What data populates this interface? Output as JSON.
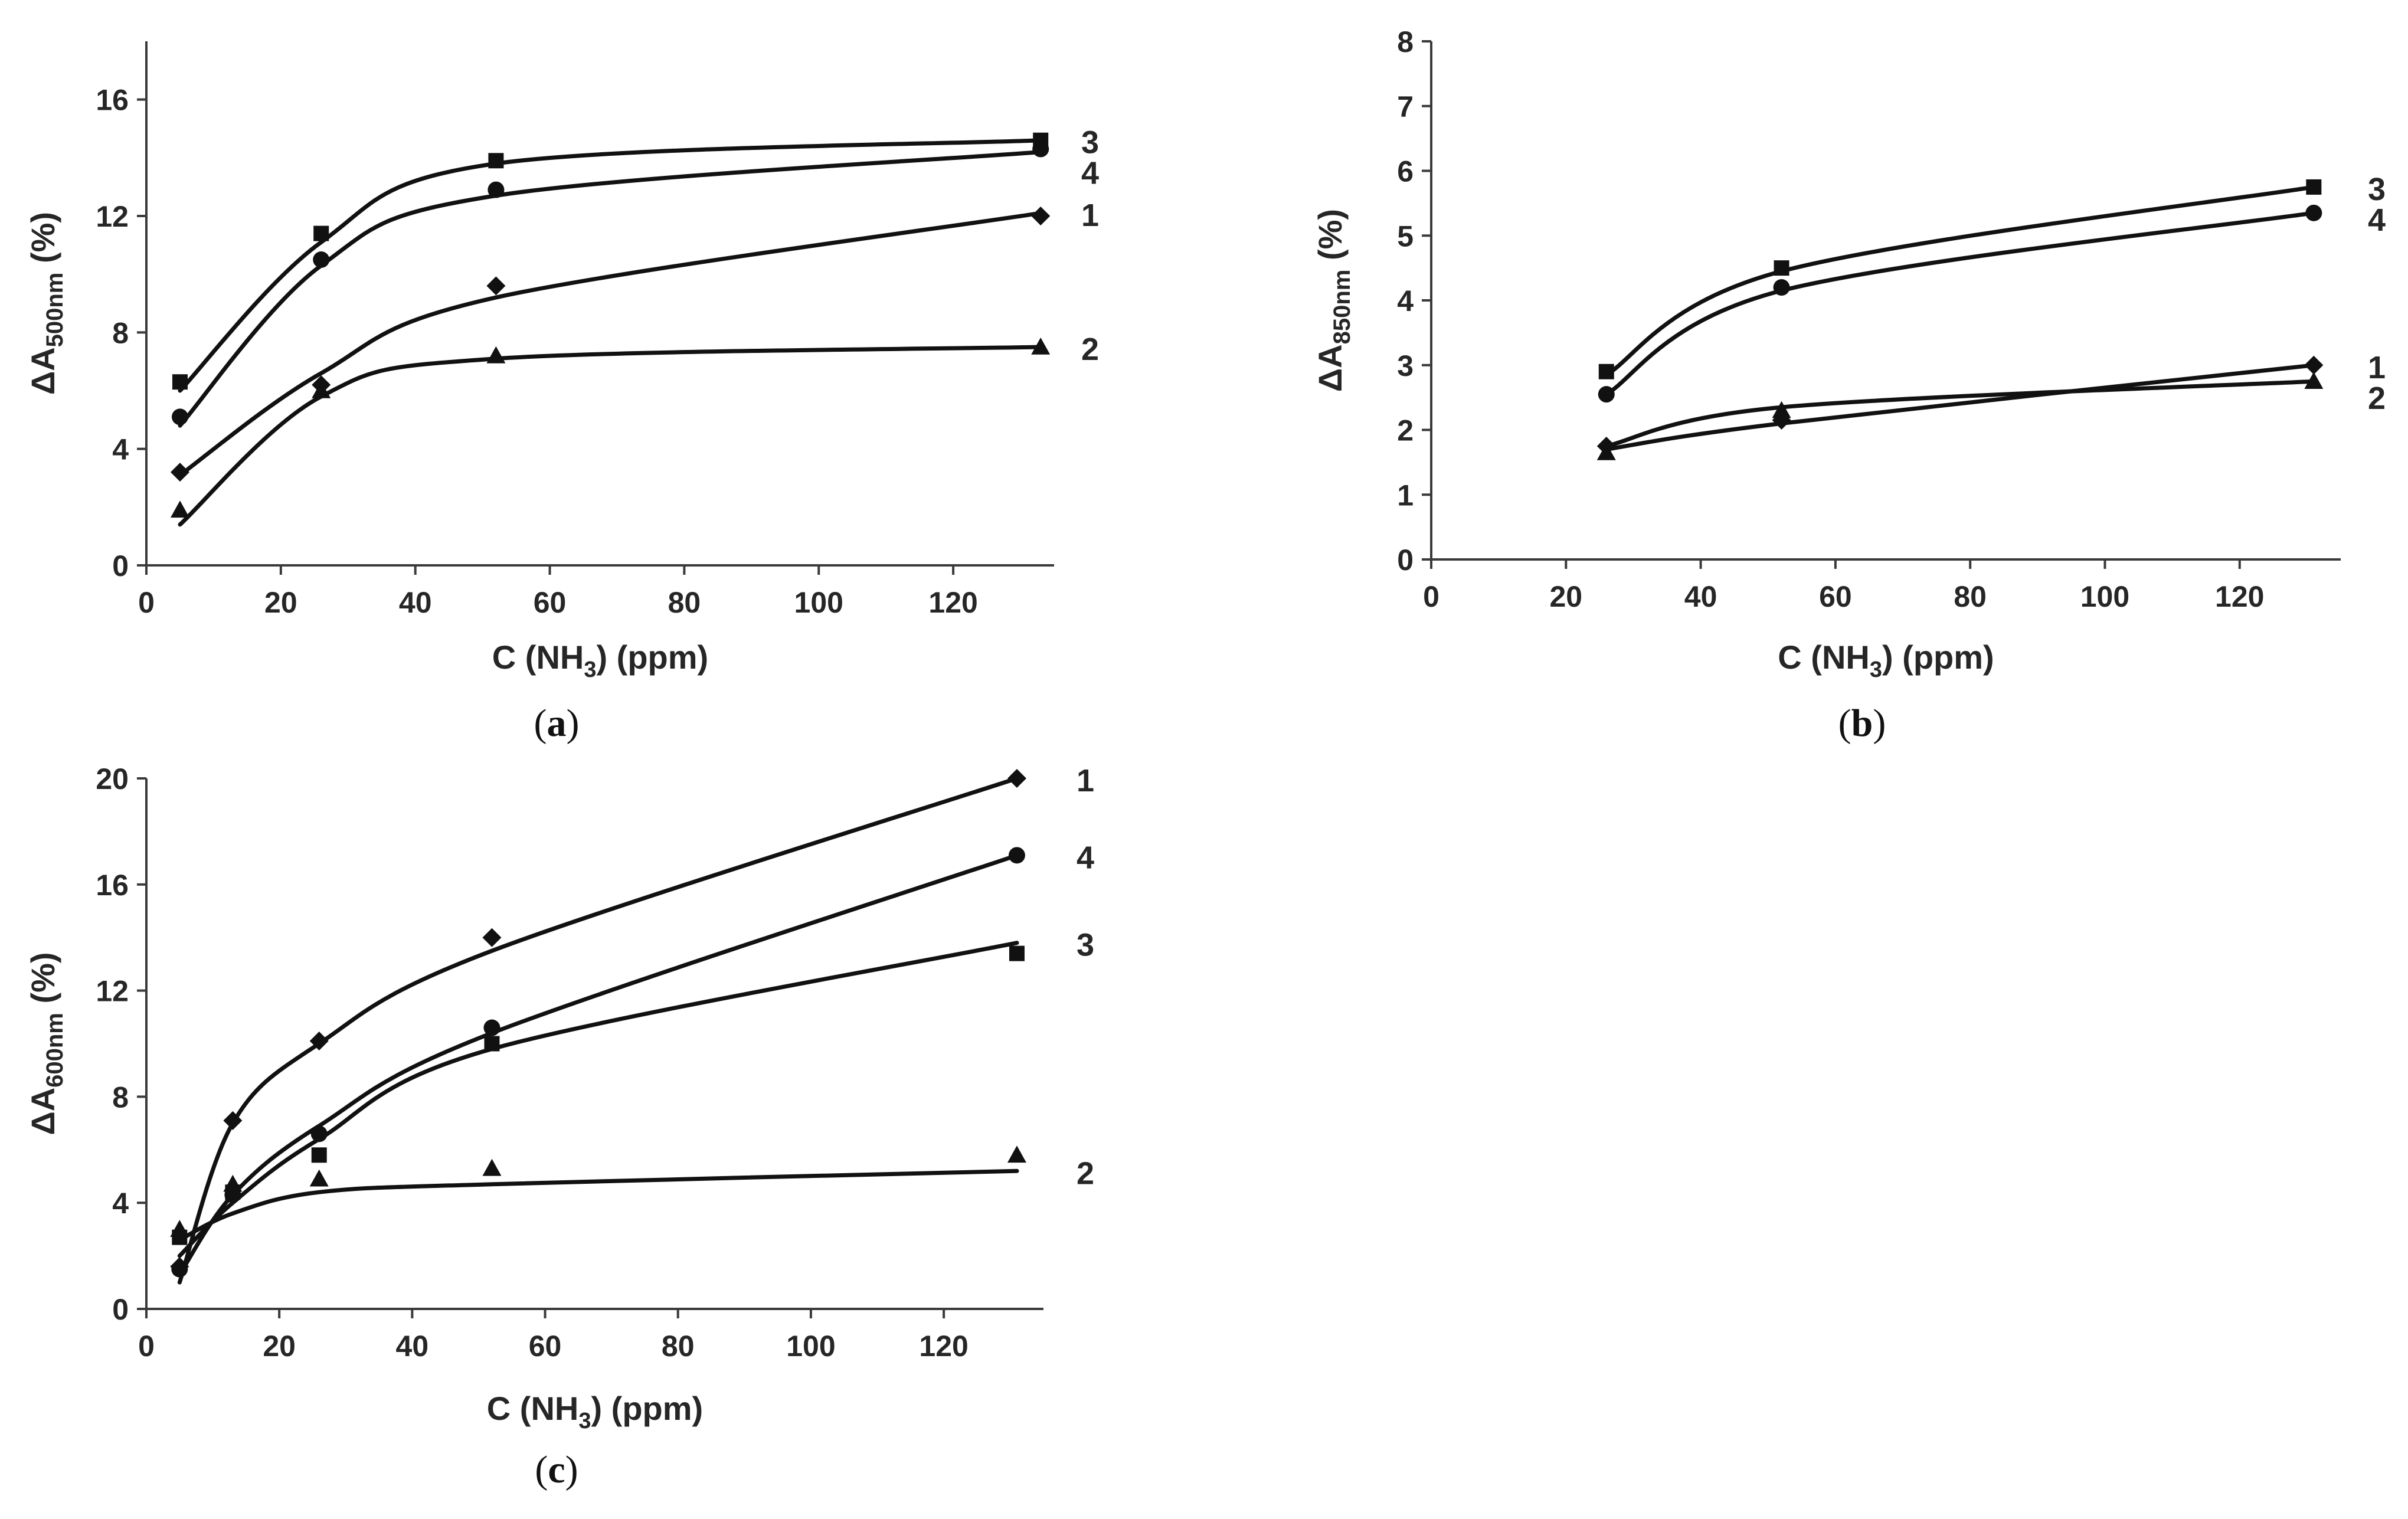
{
  "chart_data": [
    {
      "type": "line",
      "panel": "a",
      "xlabel": "C (NH",
      "xlabel_sub": "3",
      "xlabel_tail": ") (ppm)",
      "ylabel": "ΔA",
      "ylabel_sub": "500nm",
      "ylabel_tail": " (%)",
      "xlim": [
        0,
        135
      ],
      "ylim": [
        0,
        18
      ],
      "xticks": [
        0,
        20,
        40,
        60,
        80,
        100,
        120
      ],
      "yticks": [
        0,
        4,
        8,
        12,
        16
      ],
      "series": [
        {
          "name": "3",
          "marker": "square",
          "x": [
            5,
            26,
            52,
            133
          ],
          "y": [
            6.3,
            11.4,
            13.9,
            14.6
          ],
          "fit": [
            6.0,
            11.1,
            13.8,
            14.6
          ]
        },
        {
          "name": "4",
          "marker": "circle",
          "x": [
            5,
            26,
            52,
            133
          ],
          "y": [
            5.1,
            10.5,
            12.9,
            14.3
          ],
          "fit": [
            4.8,
            10.3,
            12.7,
            14.2
          ]
        },
        {
          "name": "1",
          "marker": "diamond",
          "x": [
            5,
            26,
            52,
            133
          ],
          "y": [
            3.2,
            6.2,
            9.6,
            12.0
          ],
          "fit": [
            3.1,
            6.6,
            9.2,
            12.1
          ]
        },
        {
          "name": "2",
          "marker": "triangle",
          "x": [
            5,
            26,
            52,
            133
          ],
          "y": [
            1.9,
            6.0,
            7.2,
            7.5
          ],
          "fit": [
            1.4,
            5.8,
            7.1,
            7.5
          ]
        }
      ]
    },
    {
      "type": "line",
      "panel": "b",
      "xlabel": "C (NH",
      "xlabel_sub": "3",
      "xlabel_tail": ") (ppm)",
      "ylabel": "ΔA",
      "ylabel_sub": "850nm",
      "ylabel_tail": " (%)",
      "xlim": [
        0,
        135
      ],
      "ylim": [
        0,
        8
      ],
      "xticks": [
        0,
        20,
        40,
        60,
        80,
        100,
        120
      ],
      "yticks": [
        0,
        1,
        2,
        3,
        4,
        5,
        6,
        7,
        8
      ],
      "series": [
        {
          "name": "3",
          "marker": "square",
          "x": [
            26,
            52,
            131
          ],
          "y": [
            2.9,
            4.5,
            5.75
          ],
          "fit": [
            2.85,
            4.45,
            5.75
          ]
        },
        {
          "name": "4",
          "marker": "circle",
          "x": [
            26,
            52,
            131
          ],
          "y": [
            2.55,
            4.2,
            5.35
          ],
          "fit": [
            2.55,
            4.15,
            5.35
          ]
        },
        {
          "name": "1",
          "marker": "diamond",
          "x": [
            26,
            52,
            131
          ],
          "y": [
            1.75,
            2.15,
            3.0
          ],
          "fit": [
            1.7,
            2.1,
            3.0
          ]
        },
        {
          "name": "2",
          "marker": "triangle",
          "x": [
            26,
            52,
            131
          ],
          "y": [
            1.65,
            2.3,
            2.75
          ],
          "fit": [
            1.75,
            2.35,
            2.75
          ]
        }
      ]
    },
    {
      "type": "line",
      "panel": "c",
      "xlabel": "C (NH",
      "xlabel_sub": "3",
      "xlabel_tail": ") (ppm)",
      "ylabel": "ΔA",
      "ylabel_sub": "600nm",
      "ylabel_tail": " (%)",
      "xlim": [
        0,
        135
      ],
      "ylim": [
        0,
        20
      ],
      "xticks": [
        0,
        20,
        40,
        60,
        80,
        100,
        120
      ],
      "yticks": [
        0,
        4,
        8,
        12,
        16,
        20
      ],
      "series": [
        {
          "name": "1",
          "marker": "diamond",
          "x": [
            5,
            13,
            26,
            52,
            131
          ],
          "y": [
            1.6,
            7.1,
            10.1,
            14.0,
            20.0
          ],
          "fit": [
            1.0,
            7.0,
            10.0,
            13.5,
            20.0
          ]
        },
        {
          "name": "4",
          "marker": "circle",
          "x": [
            5,
            13,
            26,
            52,
            131
          ],
          "y": [
            1.5,
            4.3,
            6.6,
            10.6,
            17.1
          ],
          "fit": [
            1.3,
            4.3,
            6.9,
            10.4,
            17.1
          ]
        },
        {
          "name": "3",
          "marker": "square",
          "x": [
            5,
            13,
            26,
            52,
            131
          ],
          "y": [
            2.7,
            4.4,
            5.8,
            10.0,
            13.4
          ],
          "fit": [
            2.0,
            4.0,
            6.4,
            9.8,
            13.8
          ]
        },
        {
          "name": "2",
          "marker": "triangle",
          "x": [
            5,
            13,
            26,
            52,
            131
          ],
          "y": [
            3.0,
            4.7,
            4.9,
            5.3,
            5.8
          ],
          "fit": [
            2.6,
            3.6,
            4.4,
            4.7,
            5.2
          ]
        }
      ]
    }
  ]
}
